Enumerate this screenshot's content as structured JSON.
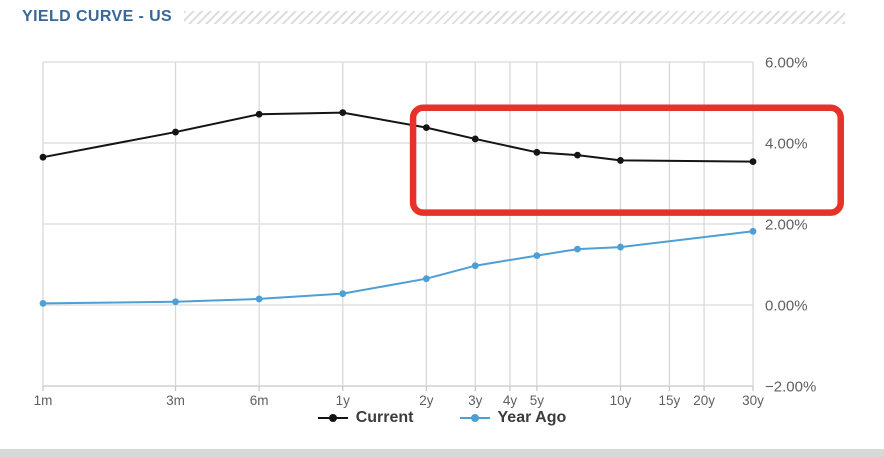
{
  "header": {
    "title": "YIELD CURVE - US"
  },
  "colors": {
    "title": "#38689a",
    "grid": "#d9d9d9",
    "axis_line": "#c7c7c7",
    "axis_text": "#5f6062",
    "background": "#ffffff",
    "bottom_bar": "#d8d8d8"
  },
  "chart_data": {
    "type": "line",
    "title": "YIELD CURVE - US",
    "x_scale": "log",
    "grid": true,
    "legend_position": "bottom",
    "x_axis": {
      "categories": [
        "1m",
        "3m",
        "6m",
        "1y",
        "2y",
        "3y",
        "4y",
        "5y",
        "10y",
        "15y",
        "20y",
        "30y"
      ],
      "months": [
        1,
        3,
        6,
        12,
        24,
        36,
        48,
        60,
        120,
        180,
        240,
        360
      ]
    },
    "y_axis": {
      "min": -2,
      "max": 6,
      "unit": "%",
      "ticks": [
        {
          "value": 6,
          "label": "6.00%"
        },
        {
          "value": 4,
          "label": "4.00%"
        },
        {
          "value": 2,
          "label": "2.00%"
        },
        {
          "value": 0,
          "label": "0.00%"
        },
        {
          "value": -2,
          "label": "−2.00%"
        }
      ]
    },
    "series": [
      {
        "name": "Current",
        "color": "#141414",
        "months": [
          1,
          3,
          6,
          12,
          24,
          36,
          60,
          84,
          120,
          360
        ],
        "maturities": [
          "1m",
          "3m",
          "6m",
          "1y",
          "2y",
          "3y",
          "5y",
          "7y",
          "10y",
          "30y"
        ],
        "values": [
          3.65,
          4.27,
          4.71,
          4.75,
          4.38,
          4.1,
          3.77,
          3.7,
          3.57,
          3.54
        ]
      },
      {
        "name": "Year Ago",
        "color": "#4e9fd4",
        "months": [
          1,
          3,
          6,
          12,
          24,
          36,
          60,
          84,
          120,
          360
        ],
        "maturities": [
          "1m",
          "3m",
          "6m",
          "1y",
          "2y",
          "3y",
          "5y",
          "7y",
          "10y",
          "30y"
        ],
        "values": [
          0.04,
          0.08,
          0.15,
          0.28,
          0.65,
          0.97,
          1.22,
          1.38,
          1.43,
          1.82
        ]
      }
    ],
    "annotation": {
      "type": "box",
      "color": "#e63228",
      "from_months": 21.5,
      "to_months": 745,
      "top_value": 4.87,
      "bottom_value": 2.28,
      "stroke_width": 6.5,
      "corner_radius": 10
    }
  }
}
